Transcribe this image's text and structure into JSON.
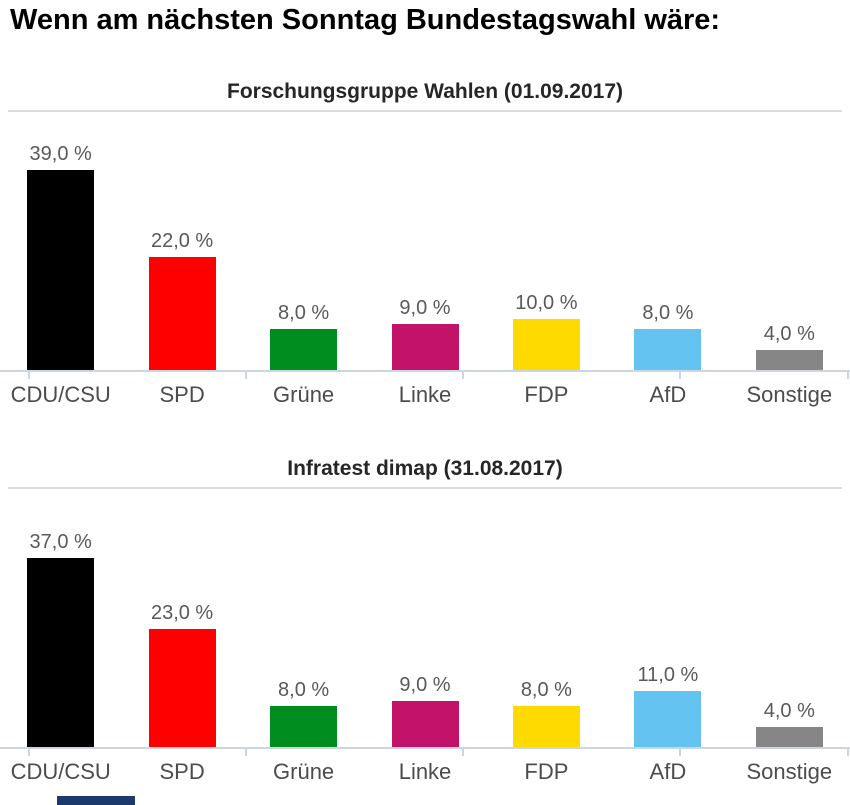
{
  "page": {
    "title": "Wenn am nächsten Sonntag Bundestagswahl wäre:"
  },
  "colors": {
    "bar_label": "#595959",
    "category_label": "#4c4c4c",
    "axis_line": "#c9d6e6",
    "title_rule": "#dcdcdc",
    "fragment": "#1b3a6b"
  },
  "chart_data": [
    {
      "type": "bar",
      "title": "Forschungsgruppe Wahlen (01.09.2017)",
      "categories": [
        "CDU/CSU",
        "SPD",
        "Grüne",
        "Linke",
        "FDP",
        "AfD",
        "Sonstige"
      ],
      "slugs": [
        "cdu-csu",
        "spd",
        "gruene",
        "linke",
        "fdp",
        "afd",
        "sonstige"
      ],
      "values": [
        39.0,
        22.0,
        8.0,
        9.0,
        10.0,
        8.0,
        4.0
      ],
      "value_labels": [
        "39,0 %",
        "22,0 %",
        "8,0 %",
        "9,0 %",
        "10,0 %",
        "8,0 %",
        "4,0 %"
      ],
      "bar_colors": [
        "#000000",
        "#fe0000",
        "#008d20",
        "#c31369",
        "#ffda00",
        "#64c3f1",
        "#868686"
      ],
      "unit": "%",
      "ylim": [
        0,
        50
      ],
      "grid": false,
      "legend": false,
      "data_labels": true
    },
    {
      "type": "bar",
      "title": "Infratest dimap (31.08.2017)",
      "categories": [
        "CDU/CSU",
        "SPD",
        "Grüne",
        "Linke",
        "FDP",
        "AfD",
        "Sonstige"
      ],
      "slugs": [
        "cdu-csu",
        "spd",
        "gruene",
        "linke",
        "fdp",
        "afd",
        "sonstige"
      ],
      "values": [
        37.0,
        23.0,
        8.0,
        9.0,
        8.0,
        11.0,
        4.0
      ],
      "value_labels": [
        "37,0 %",
        "23,0 %",
        "8,0 %",
        "9,0 %",
        "8,0 %",
        "11,0 %",
        "4,0 %"
      ],
      "bar_colors": [
        "#000000",
        "#fe0000",
        "#008d20",
        "#c31369",
        "#ffda00",
        "#64c3f1",
        "#868686"
      ],
      "unit": "%",
      "ylim": [
        0,
        50
      ],
      "grid": false,
      "legend": false,
      "data_labels": true
    }
  ]
}
